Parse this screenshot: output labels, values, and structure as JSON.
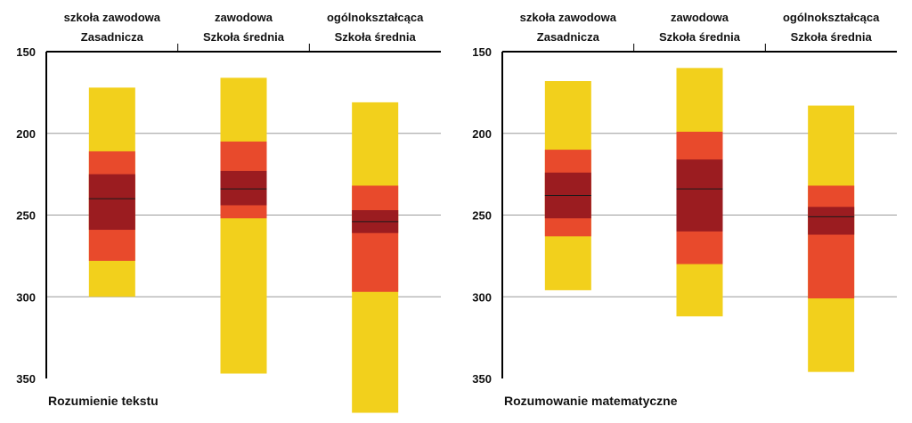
{
  "colors": {
    "outer": "#f2d01c",
    "mid": "#e84a2c",
    "inner": "#9b1c20",
    "median": "#1a1a1a",
    "grid": "#9a9a9a",
    "axis": "#000000"
  },
  "chart_data": [
    {
      "type": "box",
      "title": "Rozumienie tekstu",
      "categories": [
        {
          "line1": "szkoła zawodowa",
          "line2": "Zasadnicza"
        },
        {
          "line1": "zawodowa",
          "line2": "Szkoła średnia"
        },
        {
          "line1": "ogólnokształcąca",
          "line2": "Szkoła średnia"
        }
      ],
      "y_ticks": [
        "150",
        "200",
        "250",
        "300",
        "350"
      ],
      "ylim": [
        150,
        350
      ],
      "inverted_y": true,
      "grid": true,
      "boxes": [
        {
          "outer": [
            172,
            300
          ],
          "mid": [
            211,
            278
          ],
          "inner": [
            225,
            259
          ],
          "median": 240
        },
        {
          "outer": [
            166,
            347
          ],
          "mid": [
            205,
            252
          ],
          "inner": [
            223,
            244
          ],
          "median": 234
        },
        {
          "outer": [
            181,
            371
          ],
          "mid": [
            232,
            297
          ],
          "inner": [
            247,
            261
          ],
          "median": 254
        }
      ]
    },
    {
      "type": "box",
      "title": "Rozumowanie matematyczne",
      "categories": [
        {
          "line1": "szkoła zawodowa",
          "line2": "Zasadnicza"
        },
        {
          "line1": "zawodowa",
          "line2": "Szkoła średnia"
        },
        {
          "line1": "ogólnokształcąca",
          "line2": "Szkoła średnia"
        }
      ],
      "y_ticks": [
        "150",
        "200",
        "250",
        "300",
        "350"
      ],
      "ylim": [
        150,
        350
      ],
      "inverted_y": true,
      "grid": true,
      "boxes": [
        {
          "outer": [
            168,
            296
          ],
          "mid": [
            210,
            263
          ],
          "inner": [
            224,
            252
          ],
          "median": 238
        },
        {
          "outer": [
            160,
            312
          ],
          "mid": [
            199,
            280
          ],
          "inner": [
            216,
            260
          ],
          "median": 234
        },
        {
          "outer": [
            183,
            346
          ],
          "mid": [
            232,
            301
          ],
          "inner": [
            245,
            262
          ],
          "median": 251
        }
      ]
    }
  ]
}
